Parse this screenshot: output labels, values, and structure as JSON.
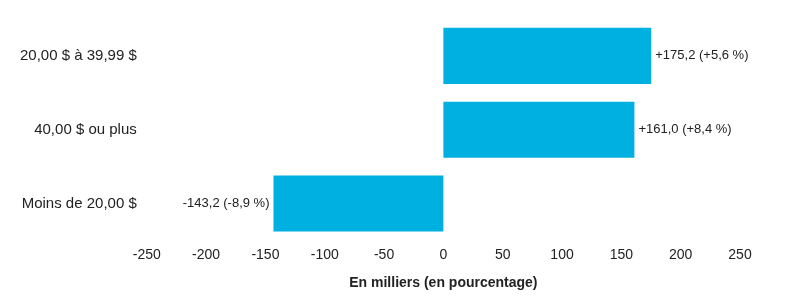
{
  "chart_data": {
    "type": "bar",
    "orientation": "horizontal",
    "categories": [
      "20,00 $ à 39,99 $",
      "40,00 $ ou plus",
      "Moins de 20,00 $"
    ],
    "values": [
      175.2,
      161.0,
      -143.2
    ],
    "value_labels": [
      "+175,2 (+5,6 %)",
      "+161,0 (+8,4 %)",
      "-143,2 (-8,9 %)"
    ],
    "data_labels": true,
    "color": "#00b0e0",
    "x_label": "En milliers (en pourcentage)",
    "xlim": [
      -250,
      250
    ],
    "xticks": [
      -250,
      -200,
      -150,
      -100,
      -50,
      0,
      50,
      100,
      150,
      200,
      250
    ],
    "grid": false
  }
}
